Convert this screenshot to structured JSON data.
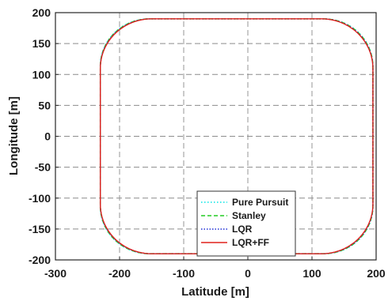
{
  "chart_data": {
    "type": "line",
    "title": "",
    "xlabel": "Latitude [m]",
    "ylabel": "Longitude [m]",
    "xlim": [
      -300,
      200
    ],
    "ylim": [
      -200,
      200
    ],
    "xticks": [
      -300,
      -200,
      -100,
      0,
      100,
      200
    ],
    "yticks": [
      -200,
      -150,
      -100,
      -50,
      0,
      50,
      100,
      150,
      200
    ],
    "xtick_labels": [
      "-300",
      "-200",
      "-100",
      "0",
      "100",
      "200"
    ],
    "ytick_labels": [
      "-200",
      "-150",
      "-100",
      "-50",
      "0",
      "50",
      "100",
      "150",
      "200"
    ],
    "grid": true,
    "legend_position": "bottom-center",
    "track": {
      "description_in_data_units": true,
      "x_min": -230,
      "x_max": 195,
      "y_min": -190,
      "y_max": 190,
      "corner_radius": 80
    },
    "series": [
      {
        "name": "Pure Pursuit",
        "color": "#00e5e5",
        "style": "dotted",
        "perturb": 1.6
      },
      {
        "name": "Stanley",
        "color": "#22cc22",
        "style": "dashed",
        "perturb": 1.2
      },
      {
        "name": "LQR",
        "color": "#1f2fd6",
        "style": "dotted",
        "perturb": 0.6
      },
      {
        "name": "LQR+FF",
        "color": "#e0201c",
        "style": "solid",
        "perturb": 0
      }
    ]
  }
}
